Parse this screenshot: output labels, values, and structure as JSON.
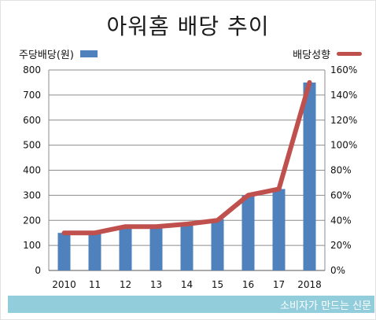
{
  "chart_data": {
    "type": "bar+line",
    "title": "아워홈 배당 추이",
    "categories": [
      "2010",
      "11",
      "12",
      "13",
      "14",
      "15",
      "16",
      "17",
      "2018"
    ],
    "series": [
      {
        "name": "주당배당(원)",
        "type": "bar",
        "axis": "left",
        "color": "#4f81bd",
        "values": [
          150,
          150,
          175,
          175,
          185,
          205,
          300,
          325,
          750
        ]
      },
      {
        "name": "배당성향",
        "type": "line",
        "axis": "right",
        "color": "#c0504d",
        "values": [
          30,
          30,
          35,
          35,
          37,
          40,
          60,
          65,
          150
        ]
      }
    ],
    "y_left": {
      "min": 0,
      "max": 800,
      "ticks": [
        "0",
        "100",
        "200",
        "300",
        "400",
        "500",
        "600",
        "700",
        "800"
      ]
    },
    "y_right": {
      "min": 0,
      "max": 160,
      "ticks": [
        "0%",
        "20%",
        "40%",
        "60%",
        "80%",
        "100%",
        "120%",
        "140%",
        "160%"
      ]
    },
    "grid": true,
    "legend": "top"
  },
  "footer": {
    "text": "소비자가 만드는 신문"
  }
}
